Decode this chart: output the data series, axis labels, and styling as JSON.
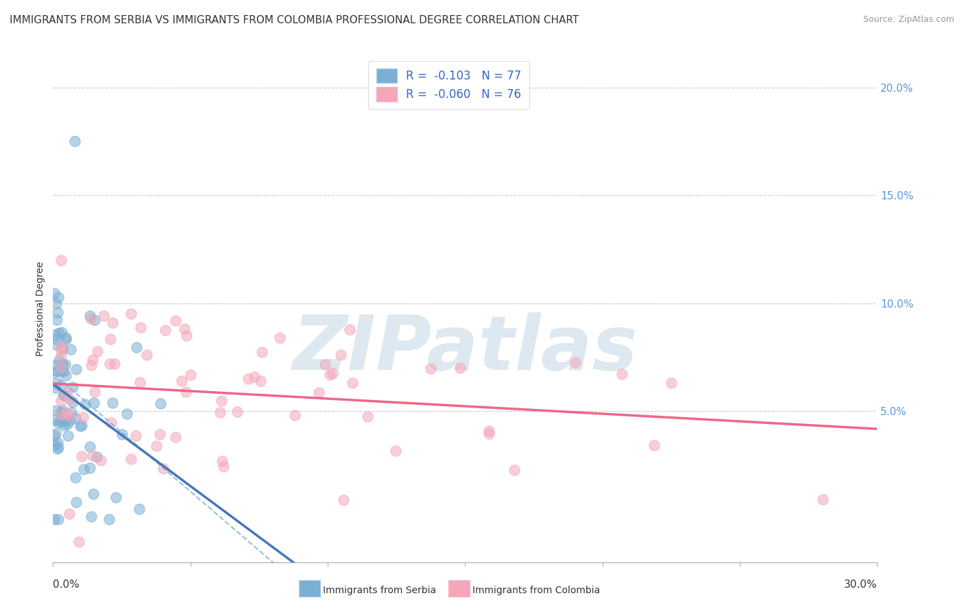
{
  "title": "IMMIGRANTS FROM SERBIA VS IMMIGRANTS FROM COLOMBIA PROFESSIONAL DEGREE CORRELATION CHART",
  "source": "Source: ZipAtlas.com",
  "ylabel": "Professional Degree",
  "xlim": [
    0.0,
    30.0
  ],
  "ylim": [
    -2.0,
    21.5
  ],
  "yticks": [
    5.0,
    10.0,
    15.0,
    20.0
  ],
  "serbia_color": "#7bafd4",
  "colombia_color": "#f4a7b9",
  "serbia_line_color": "#4477bb",
  "colombia_line_color": "#ee6688",
  "serbia_R": -0.103,
  "serbia_N": 77,
  "colombia_R": -0.06,
  "colombia_N": 76,
  "background_color": "#ffffff",
  "grid_color": "#cccccc",
  "watermark_text": "ZIPatlas",
  "watermark_color": "#dde8f0",
  "title_fontsize": 11,
  "axis_label_fontsize": 10,
  "tick_fontsize": 11,
  "legend_fontsize": 12
}
